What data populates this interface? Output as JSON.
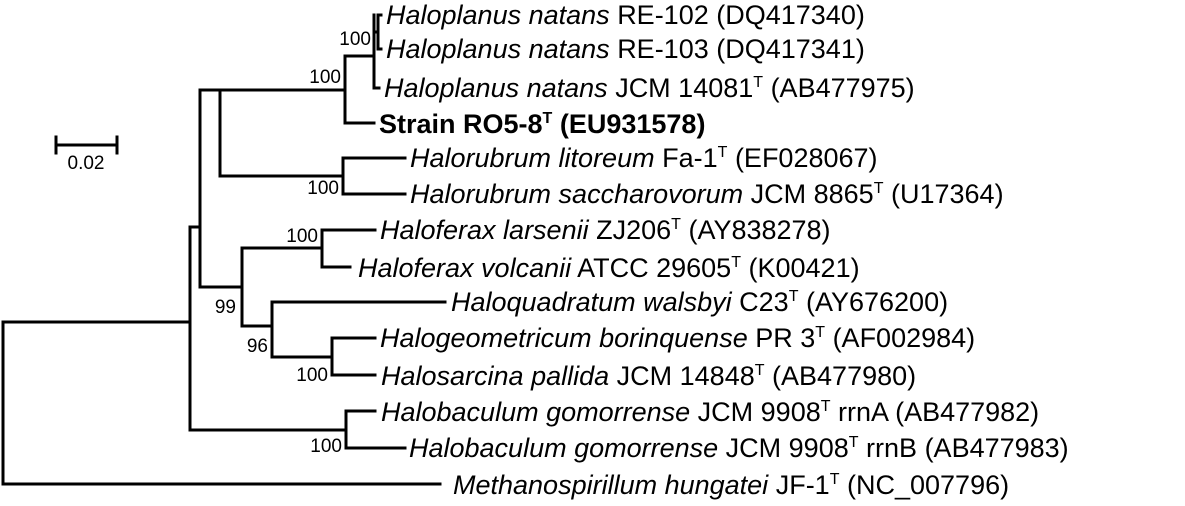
{
  "taxa": [
    {
      "genus_species": "Haloplanus natans",
      "strain": "RE-102",
      "type_mark": "",
      "accession": "(DQ417340)",
      "bold": false
    },
    {
      "genus_species": "Haloplanus natans",
      "strain": "RE-103",
      "type_mark": "",
      "accession": "(DQ417341)",
      "bold": false
    },
    {
      "genus_species": "Haloplanus natans",
      "strain": "JCM 14081",
      "type_mark": "T",
      "accession": "(AB477975)",
      "bold": false
    },
    {
      "genus_species": "",
      "strain": "Strain RO5-8",
      "type_mark": "T",
      "accession": "(EU931578)",
      "bold": true
    },
    {
      "genus_species": "Halorubrum litoreum",
      "strain": "Fa-1",
      "type_mark": "T",
      "accession": "(EF028067)",
      "bold": false
    },
    {
      "genus_species": "Halorubrum saccharovorum",
      "strain": "JCM 8865",
      "type_mark": "T",
      "accession": "(U17364)",
      "bold": false
    },
    {
      "genus_species": "Haloferax larsenii",
      "strain": "ZJ206",
      "type_mark": "T",
      "accession": "(AY838278)",
      "bold": false
    },
    {
      "genus_species": "Haloferax volcanii",
      "strain": "ATCC 29605",
      "type_mark": "T",
      "accession": "(K00421)",
      "bold": false
    },
    {
      "genus_species": "Haloquadratum walsbyi",
      "strain": "C23",
      "type_mark": "T",
      "accession": "(AY676200)",
      "bold": false
    },
    {
      "genus_species": "Halogeometricum borinquense",
      "strain": "PR 3",
      "type_mark": "T",
      "accession": "(AF002984)",
      "bold": false
    },
    {
      "genus_species": "Halosarcina pallida",
      "strain": "JCM 14848",
      "type_mark": "T",
      "accession": "(AB477980)",
      "bold": false
    },
    {
      "genus_species": "Halobaculum gomorrense",
      "strain": "JCM 9908",
      "type_mark": "T",
      "suffix": "rrnA",
      "accession": "(AB477982)",
      "bold": false
    },
    {
      "genus_species": "Halobaculum gomorrense",
      "strain": "JCM 9908",
      "type_mark": "T",
      "suffix": "rrnB",
      "accession": "(AB477983)",
      "bold": false
    },
    {
      "genus_species": "Methanospirillum hungatei",
      "strain": "JF-1",
      "type_mark": "T",
      "accession": "(NC_007796)",
      "bold": false
    }
  ],
  "bootstrap_values": {
    "haloplanus_re": "100",
    "haloplanus_clade": "100",
    "halorubrum": "100",
    "haloferax": "100",
    "ferax_group": "99",
    "quadratum_group": "96",
    "geometricum_sarcina": "100",
    "halobaculum": "100"
  },
  "scale_bar": {
    "label": "0.02"
  }
}
